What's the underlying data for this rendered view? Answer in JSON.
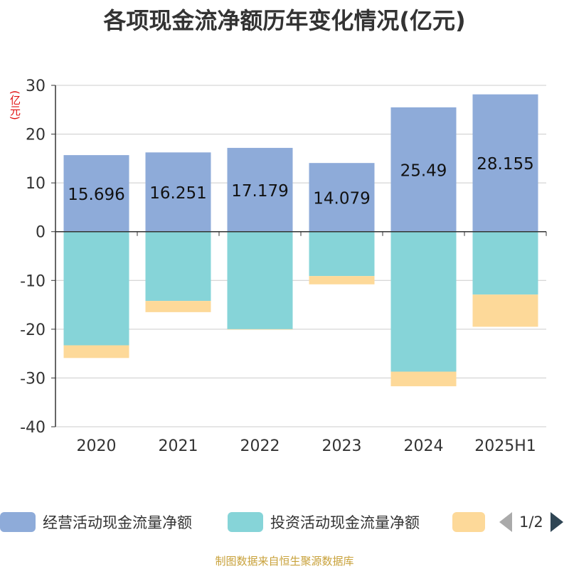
{
  "title": "各项现金流净额历年变化情况(亿元)",
  "unit_label": "(亿元)",
  "source": "制图数据来自恒生聚源数据库",
  "legend": {
    "page": "1/2",
    "items": [
      {
        "label": "经营活动现金流量净额",
        "color": "#8eabd9"
      },
      {
        "label": "投资活动现金流量净额",
        "color": "#86d4d8"
      },
      {
        "label": "",
        "color": "#fdd999"
      }
    ]
  },
  "chart_data": {
    "type": "bar",
    "stacked": true,
    "categories": [
      "2020",
      "2021",
      "2022",
      "2023",
      "2024",
      "2025H1"
    ],
    "ylim": [
      -40,
      30
    ],
    "yticks": [
      30,
      20,
      10,
      0,
      -10,
      -20,
      -30,
      -40
    ],
    "grid": true,
    "legend_position": "bottom",
    "series": [
      {
        "name": "经营活动现金流量净额",
        "color": "#8eabd9",
        "values": [
          15.696,
          16.251,
          17.179,
          14.079,
          25.49,
          28.155
        ],
        "labels": [
          "15.696",
          "16.251",
          "17.179",
          "14.079",
          "25.49",
          "28.155"
        ]
      },
      {
        "name": "投资活动现金流量净额",
        "color": "#86d4d8",
        "values": [
          -23.3,
          -14.2,
          -20.0,
          -9.1,
          -28.7,
          -12.9
        ]
      },
      {
        "color": "#fdd999",
        "values": [
          -2.6,
          -2.3,
          -0.1,
          -1.7,
          -3.0,
          -6.6
        ]
      }
    ]
  }
}
